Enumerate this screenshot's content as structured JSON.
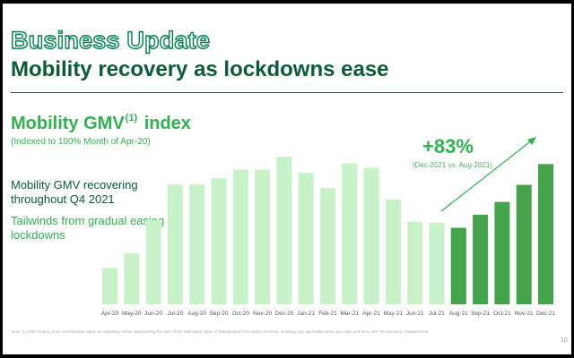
{
  "slide": {
    "title": "Business Update",
    "subtitle": "Mobility recovery as lockdowns ease",
    "page_number": "10",
    "footnote": "Note: 1. GMV means gross merchandise value, an operating metric representing the sum of the total dollar value of transactions from Grab's services, including any applicable taxes, tips, tolls and fees, over the period of measurement"
  },
  "chart_header": {
    "title": "Mobility GMV",
    "title_sup": "(1)",
    "title_suffix": "index",
    "note": "(Indexed to 100% Month of Apr-20)"
  },
  "commentary": {
    "line1": "Mobility GMV recovering throughout Q4 2021",
    "line2": "Tailwinds from gradual easing of lockdowns"
  },
  "callout": {
    "value": "+83%",
    "label": "(Dec-2021 vs. Aug-2021)"
  },
  "colors": {
    "dark_green": "#0b5c38",
    "bright_green": "#2fb350",
    "light_bar": "#c8f2c8",
    "dark_bar": "#43a44a"
  },
  "chart_data": {
    "type": "bar",
    "categories": [
      "Apr-20",
      "May-20",
      "Jun-20",
      "Jul-20",
      "Aug-20",
      "Sep-20",
      "Oct-20",
      "Nov-20",
      "Dec-20",
      "Jan-21",
      "Feb-21",
      "Mar-21",
      "Apr-21",
      "May-21",
      "Jun-21",
      "Jul-21",
      "Aug-21",
      "Sep-21",
      "Oct-21",
      "Nov-21",
      "Dec-21"
    ],
    "values": [
      100,
      140,
      232,
      329,
      329,
      346,
      370,
      370,
      405,
      361,
      320,
      387,
      375,
      288,
      227,
      224,
      210,
      246,
      281,
      328,
      385
    ],
    "highlighted_from_index": 16,
    "ylim": [
      0,
      430
    ],
    "title": "",
    "xlabel": "",
    "ylabel": "",
    "grid": false,
    "legend": "none"
  }
}
